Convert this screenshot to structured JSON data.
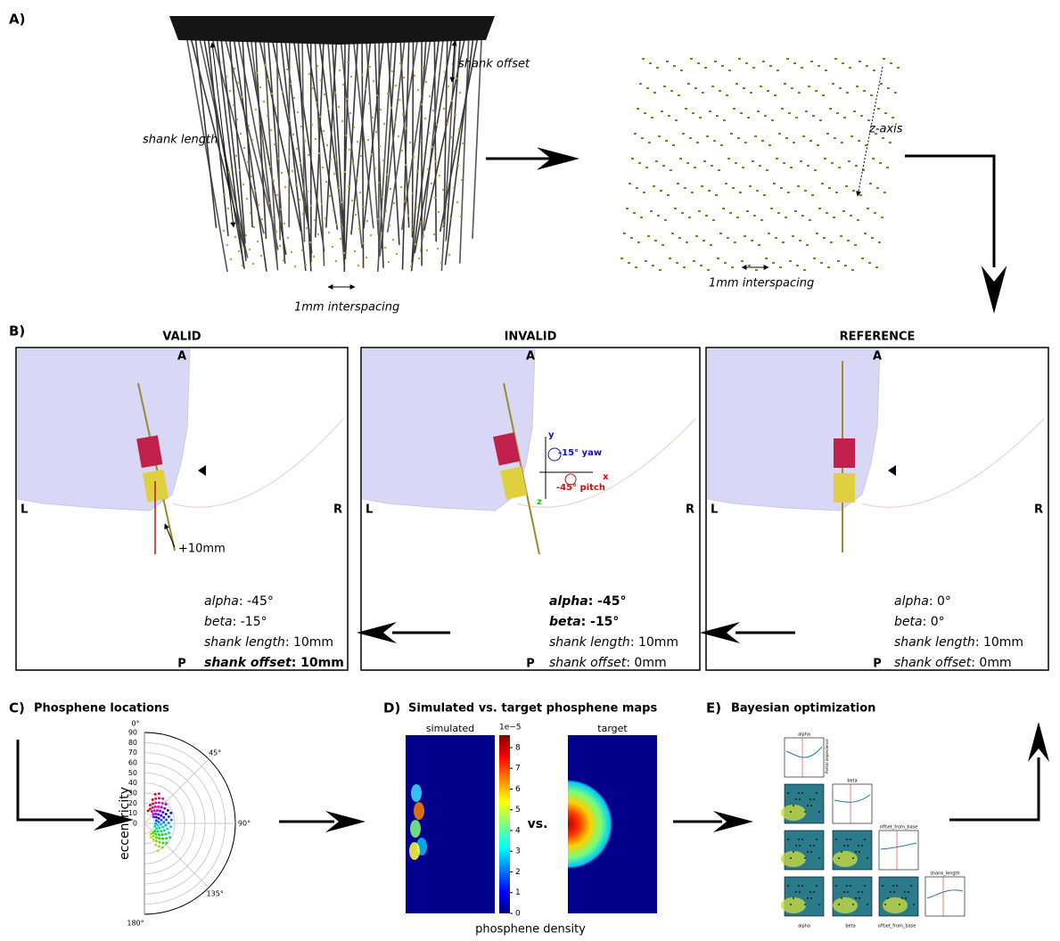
{
  "panel_a": {
    "label": "A)",
    "shank_offset": "shank offset",
    "shank_length": "shank length",
    "interspacing_left": "1mm interspacing",
    "z_axis": "z-axis",
    "interspacing_right": "1mm interspacing"
  },
  "panel_b": {
    "label": "B)",
    "plus_offset": "+10mm",
    "rotation": {
      "y": "y",
      "yaw": "-15° yaw",
      "x": "x",
      "pitch": "-45° pitch",
      "z": "z"
    },
    "boxes": [
      {
        "title": "VALID",
        "anterior": "A",
        "posterior": "P",
        "left": "L",
        "right": "R",
        "params": [
          {
            "name": "alpha",
            "value": ": -45°",
            "bold": false
          },
          {
            "name": "beta",
            "value": ": -15°",
            "bold": false
          },
          {
            "name": "shank length",
            "value": ": 10mm",
            "bold": false
          },
          {
            "name": "shank offset",
            "value": ": 10mm",
            "bold": true
          }
        ]
      },
      {
        "title": "INVALID",
        "anterior": "A",
        "posterior": "P",
        "left": "L",
        "right": "R",
        "params": [
          {
            "name": "alpha",
            "value": ": -45°",
            "bold": true
          },
          {
            "name": "beta",
            "value": ": -15°",
            "bold": true
          },
          {
            "name": "shank length",
            "value": ": 10mm",
            "bold": false
          },
          {
            "name": "shank offset",
            "value": ": 0mm",
            "bold": false
          }
        ]
      },
      {
        "title": "REFERENCE",
        "anterior": "A",
        "posterior": "P",
        "left": "L",
        "right": "R",
        "params": [
          {
            "name": "alpha",
            "value": ": 0°",
            "bold": false
          },
          {
            "name": "beta",
            "value": ": 0°",
            "bold": false
          },
          {
            "name": "shank length",
            "value": ": 10mm",
            "bold": false
          },
          {
            "name": "shank offset",
            "value": ": 0mm",
            "bold": false
          }
        ]
      }
    ]
  },
  "panel_c": {
    "label": "C)",
    "title": "Phosphene locations",
    "ylabel": "eccentricity",
    "radial_ticks": [
      0,
      10,
      20,
      30,
      40,
      50,
      60,
      70,
      80,
      90
    ],
    "angle_ticks": [
      {
        "value": 0,
        "label": "0°"
      },
      {
        "value": 45,
        "label": "45°"
      },
      {
        "value": 90,
        "label": "90°"
      },
      {
        "value": 135,
        "label": "135°"
      },
      {
        "value": 180,
        "label": "180°"
      }
    ]
  },
  "panel_d": {
    "label": "D)",
    "title": "Simulated vs. target phosphene maps",
    "simulated": "simulated",
    "target": "target",
    "vs": "vs.",
    "xlabel": "phosphene density",
    "colorbar_scale": "1e−5",
    "colorbar_ticks": [
      0,
      1,
      2,
      3,
      4,
      5,
      6,
      7,
      8
    ],
    "colorbar_lim": [
      0,
      8.6
    ]
  },
  "panel_e": {
    "label": "E)",
    "title": "Bayesian optimization",
    "params": [
      "alpha",
      "beta",
      "offset_from_base",
      "shank_length"
    ],
    "diag_label": "Partial dependence"
  }
}
